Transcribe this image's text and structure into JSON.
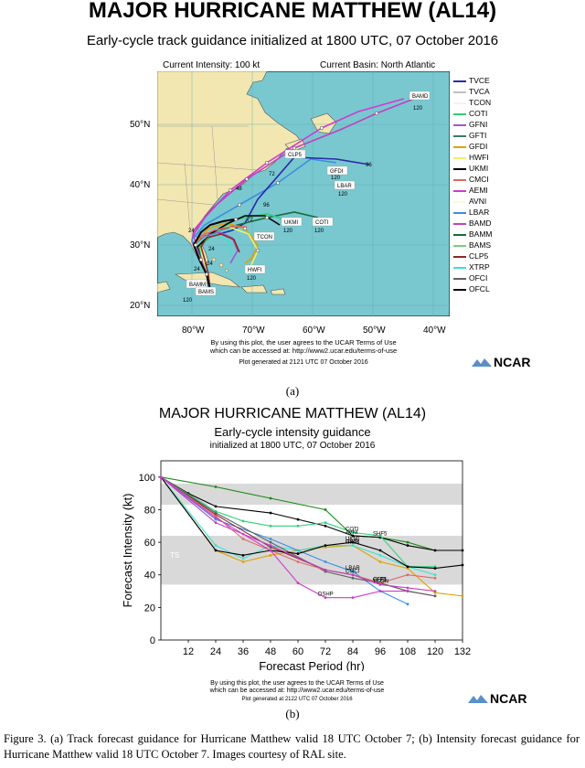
{
  "fig_a": {
    "title": "MAJOR HURRICANE MATTHEW (AL14)",
    "subtitle": "Early-cycle track guidance initialized at 1800 UTC, 07 October 2016",
    "current_intensity": "Current Intensity: 100 kt",
    "current_basin": "Current Basin: North Atlantic",
    "lat_labels": [
      "50°N",
      "40°N",
      "30°N",
      "20°N"
    ],
    "lon_labels": [
      "80°W",
      "70°W",
      "60°W",
      "50°W",
      "40°W"
    ],
    "terms_line1": "By using this plot, the user agrees to the UCAR Terms of Use",
    "terms_line2": "which can be accessed at: http://www2.ucar.edu/terms-of-use",
    "generated": "Plot generated at 2121 UTC   07 October 2016",
    "label": "(a)",
    "map_labels": [
      "BAMD",
      "CLP5",
      "GFDI",
      "LBAR",
      "UKMI",
      "COTI",
      "TCON",
      "HWFI",
      "BAMM",
      "BAMS"
    ],
    "hour_labels": [
      "120",
      "96",
      "72",
      "48",
      "24",
      "120",
      "120",
      "120",
      "96",
      "120",
      "72",
      "24",
      "24",
      "24",
      "120",
      "120"
    ]
  },
  "legend": [
    {
      "name": "TVCE",
      "color": "#2a2aa8"
    },
    {
      "name": "TVCA",
      "color": "#bfbfbf"
    },
    {
      "name": "TCON",
      "color": "#f2f2f2"
    },
    {
      "name": "COTI",
      "color": "#2fd07a"
    },
    {
      "name": "GFNI",
      "color": "#9b59d0"
    },
    {
      "name": "GFTI",
      "color": "#3a7a6a"
    },
    {
      "name": "GFDI",
      "color": "#e0a000"
    },
    {
      "name": "HWFI",
      "color": "#f0f06a"
    },
    {
      "name": "UKMI",
      "color": "#000000"
    },
    {
      "name": "CMCI",
      "color": "#e06868"
    },
    {
      "name": "AEMI",
      "color": "#d03ad0"
    },
    {
      "name": "AVNI",
      "color": "#fafad2"
    },
    {
      "name": "LBAR",
      "color": "#3a8fe0"
    },
    {
      "name": "BAMD",
      "color": "#c040c0"
    },
    {
      "name": "BAMM",
      "color": "#1a6a3a"
    },
    {
      "name": "BAMS",
      "color": "#7ad07a"
    },
    {
      "name": "CLP5",
      "color": "#8a2a2a"
    },
    {
      "name": "XTRP",
      "color": "#40e0d0"
    },
    {
      "name": "OFCI",
      "color": "#606060"
    },
    {
      "name": "OFCL",
      "color": "#000000"
    }
  ],
  "fig_b": {
    "title": "MAJOR HURRICANE MATTHEW (AL14)",
    "subtitle": "Early-cycle intensity guidance",
    "subtitle2": "initialized at 1800 UTC, 07 October 2016",
    "band_labels": [
      "CAT3",
      "CAT1",
      "TS"
    ],
    "terms_line1": "By using this plot, the user agrees to the UCAR Terms of Use",
    "terms_line2": "which can be accessed at: http://www2.ucar.edu/terms-of-use",
    "generated": "Plot generated at 2122 UTC   07 October 2016",
    "label": "(b)",
    "end_labels": [
      "SHF5",
      "AVNI",
      "COTI",
      "GFDI",
      "HWFI",
      "LBAR",
      "CLP5",
      "OFCI",
      "CMCI",
      "UKMI",
      "TCON",
      "DSHP"
    ]
  },
  "chart_data": {
    "type": "line",
    "title": "MAJOR HURRICANE MATTHEW (AL14)",
    "subtitle": "Early-cycle intensity guidance",
    "xlabel": "Forecast Period (hr)",
    "ylabel": "Forecast Intensity (kt)",
    "xlim": [
      0,
      132
    ],
    "ylim": [
      0,
      110
    ],
    "xticks": [
      12,
      24,
      36,
      48,
      60,
      72,
      84,
      96,
      108,
      120,
      132
    ],
    "yticks": [
      0,
      20,
      40,
      60,
      80,
      100
    ],
    "series": [
      {
        "name": "SHF5",
        "color": "#1a8a1a",
        "x": [
          0,
          24,
          48,
          72,
          84,
          96,
          108,
          120
        ],
        "y": [
          100,
          94,
          87,
          80,
          64,
          63,
          60,
          55
        ]
      },
      {
        "name": "AVNI",
        "color": "#000000",
        "x": [
          0,
          12,
          24,
          48,
          60,
          72,
          84,
          96,
          108,
          120,
          132
        ],
        "y": [
          100,
          90,
          82,
          78,
          74,
          70,
          64,
          63,
          58,
          55,
          55
        ]
      },
      {
        "name": "COTI",
        "color": "#2fd07a",
        "x": [
          0,
          24,
          36,
          48,
          60,
          72,
          84,
          96,
          108,
          120
        ],
        "y": [
          100,
          79,
          73,
          70,
          70,
          72,
          66,
          64,
          45,
          45
        ]
      },
      {
        "name": "GFDI",
        "color": "#e0a000",
        "x": [
          0,
          24,
          36,
          48,
          60,
          72,
          84,
          96,
          108,
          120,
          132
        ],
        "y": [
          100,
          55,
          48,
          52,
          55,
          57,
          58,
          48,
          44,
          29,
          27
        ]
      },
      {
        "name": "HWFI",
        "color": "#40e0d0",
        "x": [
          0,
          24,
          36,
          48,
          60,
          72,
          84,
          96,
          108,
          120
        ],
        "y": [
          100,
          58,
          50,
          58,
          55,
          58,
          58,
          52,
          45,
          40
        ]
      },
      {
        "name": "LBAR",
        "color": "#3a8fe0",
        "x": [
          0,
          24,
          48,
          72,
          84,
          96,
          108
        ],
        "y": [
          100,
          74,
          62,
          48,
          42,
          30,
          22
        ]
      },
      {
        "name": "CLP5",
        "color": "#8a2a2a",
        "x": [
          0,
          24,
          48,
          72,
          84,
          96,
          108,
          120
        ],
        "y": [
          100,
          77,
          57,
          43,
          40,
          35,
          30,
          27
        ]
      },
      {
        "name": "OFCI",
        "color": "#606060",
        "x": [
          0,
          24,
          48,
          72,
          84,
          96,
          108,
          120
        ],
        "y": [
          100,
          78,
          60,
          42,
          38,
          35,
          30,
          27
        ]
      },
      {
        "name": "CMCI",
        "color": "#e06868",
        "x": [
          0,
          24,
          36,
          48,
          60,
          72,
          84,
          96,
          108,
          120
        ],
        "y": [
          100,
          76,
          62,
          55,
          48,
          43,
          40,
          35,
          40,
          38
        ]
      },
      {
        "name": "UKMI",
        "color": "#000000",
        "x": [
          0,
          24,
          36,
          48,
          60,
          72,
          84,
          96,
          108,
          120,
          132
        ],
        "y": [
          100,
          55,
          52,
          55,
          53,
          58,
          60,
          55,
          45,
          44,
          46
        ]
      },
      {
        "name": "TCON",
        "color": "#c040c0",
        "x": [
          0,
          24,
          48,
          72,
          84,
          96,
          108,
          120
        ],
        "y": [
          100,
          72,
          58,
          43,
          40,
          34,
          32,
          30
        ]
      },
      {
        "name": "DSHP",
        "color": "#d03ad0",
        "x": [
          0,
          24,
          36,
          48,
          60,
          72,
          84,
          96,
          108
        ],
        "y": [
          100,
          75,
          65,
          55,
          35,
          26,
          26,
          30,
          30
        ]
      }
    ],
    "bands": [
      {
        "label": "CAT3",
        "y": [
          83,
          96
        ],
        "color": "#d9d9d9"
      },
      {
        "label": "TS",
        "y": [
          34,
          64
        ],
        "color": "#d9d9d9"
      }
    ],
    "grid": false
  },
  "caption": "Figure 3. (a) Track forecast guidance for Hurricane Matthew valid 18 UTC October 7; (b) Intensity forecast guidance for Hurricane Matthew valid 18 UTC October 7. Images courtesy of RAL site.",
  "logo_text": "NCAR"
}
